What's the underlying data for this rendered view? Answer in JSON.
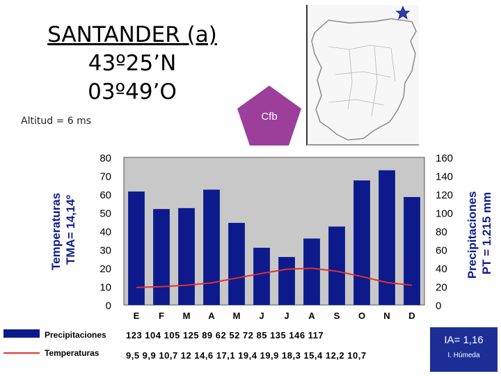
{
  "station": {
    "name": "SANTANDER (a)",
    "latitude": "43º25’N",
    "longitude": "03º49’O",
    "altitude": "Altitud = 6 ms",
    "climate_type": "Cfb"
  },
  "colors": {
    "bar_fill": "#0d1a8c",
    "plot_background": "#c8c8c8",
    "temperature_line": "#e03030",
    "pentagon": "#9b3f9b",
    "ia_box": "#1d2f96"
  },
  "legend": {
    "precip_label": "Precipitaciones",
    "temp_label": "Temperaturas"
  },
  "index": {
    "ia": "IA= 1,16",
    "class": "I. Húmeda"
  },
  "chart_data": {
    "type": "bar",
    "categories": [
      "E",
      "F",
      "M",
      "A",
      "M",
      "J",
      "J",
      "A",
      "S",
      "O",
      "N",
      "D"
    ],
    "series": [
      {
        "name": "Precipitaciones",
        "type": "bar",
        "axis": "right",
        "values": [
          123,
          104,
          105,
          125,
          89,
          62,
          52,
          72,
          85,
          135,
          146,
          117
        ],
        "labels": [
          "123",
          "104",
          "105",
          "125",
          "89",
          "62",
          "52",
          "72",
          "85",
          "135",
          "146",
          "117"
        ]
      },
      {
        "name": "Temperaturas",
        "type": "line",
        "axis": "left",
        "values": [
          9.5,
          9.9,
          10.7,
          12,
          14.6,
          17.1,
          19.4,
          19.9,
          18.3,
          15.4,
          12.2,
          10.7
        ],
        "labels": [
          "9,5",
          "9,9",
          "10,7",
          "12",
          "14,6",
          "17,1",
          "19,4",
          "19,9",
          "18,3",
          "15,4",
          "12,2",
          "10,7"
        ]
      }
    ],
    "ylabel": "Temperaturas\nTMA= 14,14º",
    "y2label": "Precipitaciones\nPT = 1.215 mm",
    "ylim": [
      0,
      80
    ],
    "y2lim": [
      0,
      160
    ],
    "yticks": [
      "0",
      "10",
      "20",
      "30",
      "40",
      "50",
      "60",
      "70",
      "80"
    ],
    "y2ticks": [
      "0",
      "20",
      "40",
      "60",
      "80",
      "100",
      "120",
      "140",
      "160"
    ],
    "grid": false
  }
}
